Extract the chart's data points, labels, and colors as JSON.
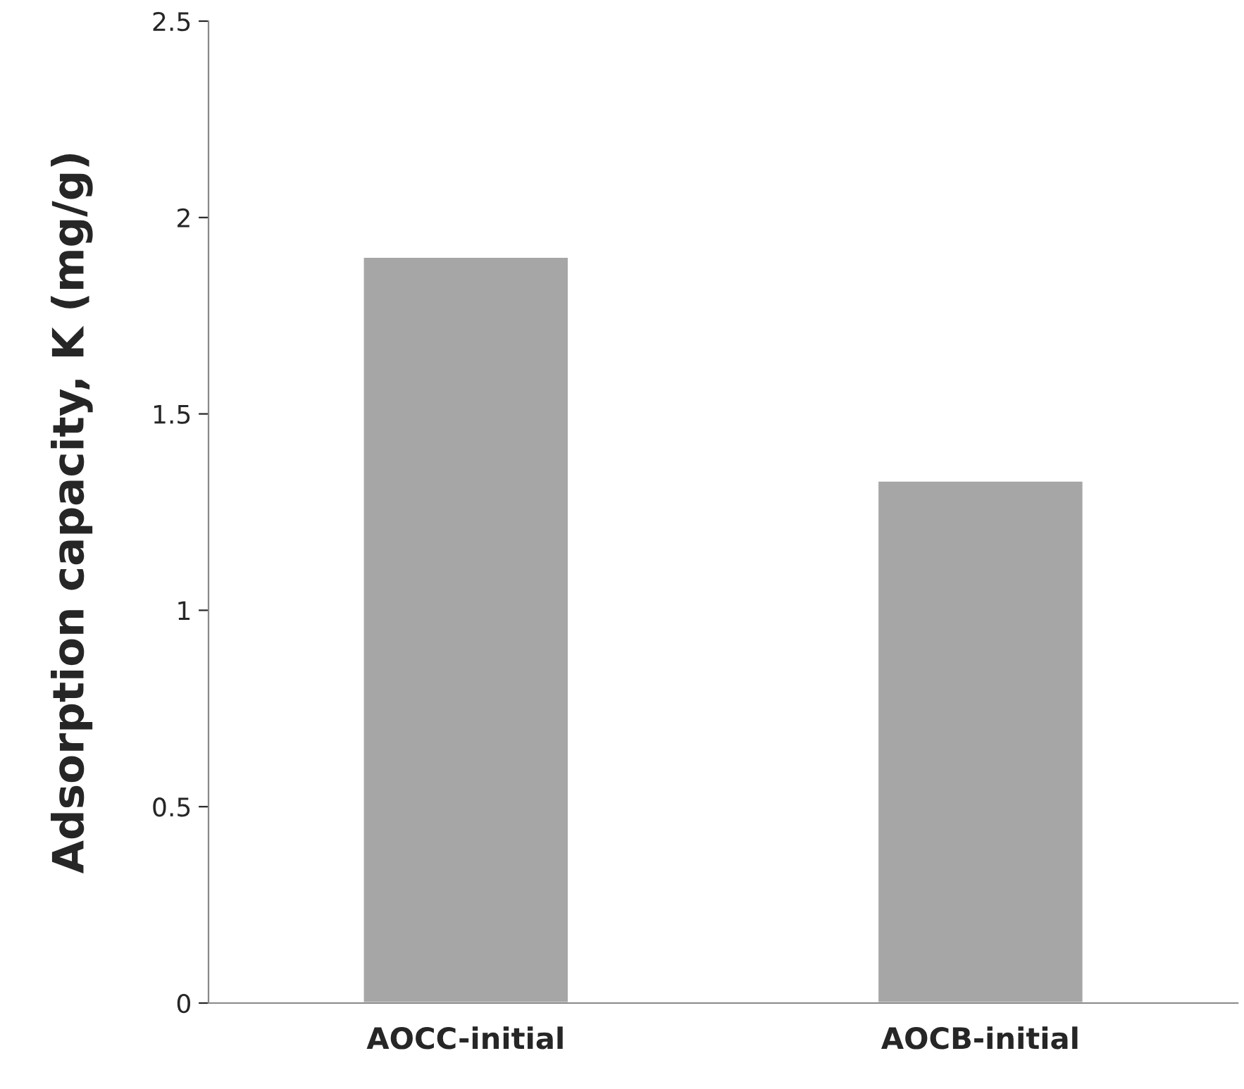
{
  "chart_data": {
    "type": "bar",
    "ylabel": "Adsorption capacity, K (mg/g)",
    "categories": [
      "AOCC-initial",
      "AOCB-initial"
    ],
    "values": [
      1.9,
      1.33
    ],
    "color": "#a6a6a6",
    "ylim": [
      0,
      2.5
    ],
    "yticks": [
      0,
      0.5,
      1,
      1.5,
      2,
      2.5
    ],
    "grid": false,
    "legend": false
  }
}
